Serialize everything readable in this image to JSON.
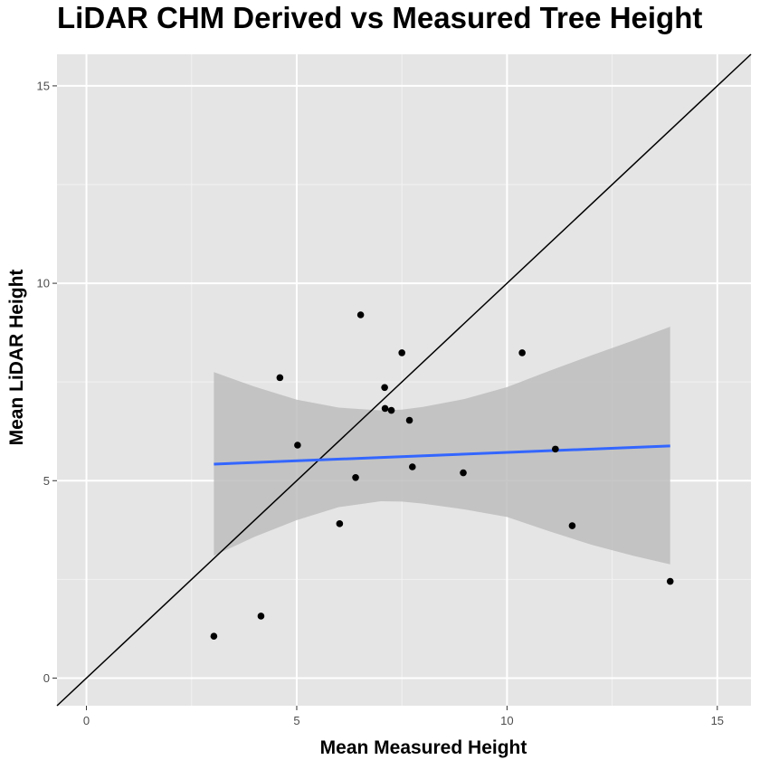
{
  "chart_data": {
    "type": "scatter",
    "title": "LiDAR CHM Derived vs Measured Tree Height",
    "xlabel": "Mean Measured Height",
    "ylabel": "Mean LiDAR Height",
    "xlim": [
      -0.7,
      15.8
    ],
    "ylim": [
      -0.7,
      15.8
    ],
    "x_ticks": [
      0,
      5,
      10,
      15
    ],
    "y_ticks": [
      0,
      5,
      10,
      15
    ],
    "x_tick_labels": [
      "0",
      "5",
      "10",
      "15"
    ],
    "y_tick_labels": [
      "0",
      "5",
      "10",
      "15"
    ],
    "grid": true,
    "background": "#e5e5e5",
    "points": [
      {
        "x": 3.03,
        "y": 1.06
      },
      {
        "x": 4.15,
        "y": 1.57
      },
      {
        "x": 4.6,
        "y": 7.61
      },
      {
        "x": 5.02,
        "y": 5.9
      },
      {
        "x": 6.02,
        "y": 3.91
      },
      {
        "x": 6.4,
        "y": 5.08
      },
      {
        "x": 6.52,
        "y": 9.2
      },
      {
        "x": 7.09,
        "y": 7.36
      },
      {
        "x": 7.1,
        "y": 6.83
      },
      {
        "x": 7.25,
        "y": 6.78
      },
      {
        "x": 7.5,
        "y": 8.24
      },
      {
        "x": 7.68,
        "y": 6.53
      },
      {
        "x": 7.75,
        "y": 5.35
      },
      {
        "x": 8.96,
        "y": 5.2
      },
      {
        "x": 10.36,
        "y": 8.24
      },
      {
        "x": 11.15,
        "y": 5.8
      },
      {
        "x": 11.55,
        "y": 3.86
      },
      {
        "x": 13.88,
        "y": 2.45
      }
    ],
    "reference_line": {
      "slope": 1,
      "intercept": 0,
      "color": "#000000"
    },
    "fit_line": {
      "x": [
        3.03,
        13.88
      ],
      "y": [
        5.42,
        5.88
      ],
      "color": "#3366ff"
    },
    "confidence_band": {
      "color": "#bdbdbd",
      "x": [
        3.03,
        4.0,
        5.0,
        6.0,
        7.0,
        7.5,
        8.0,
        9.0,
        10.0,
        11.0,
        12.0,
        13.0,
        13.88
      ],
      "upper": [
        7.75,
        7.38,
        7.05,
        6.85,
        6.78,
        6.8,
        6.87,
        7.07,
        7.37,
        7.78,
        8.17,
        8.55,
        8.9
      ],
      "lower": [
        3.1,
        3.58,
        4.0,
        4.33,
        4.48,
        4.47,
        4.42,
        4.27,
        4.08,
        3.72,
        3.38,
        3.1,
        2.88
      ]
    },
    "point_color": "#000000"
  }
}
